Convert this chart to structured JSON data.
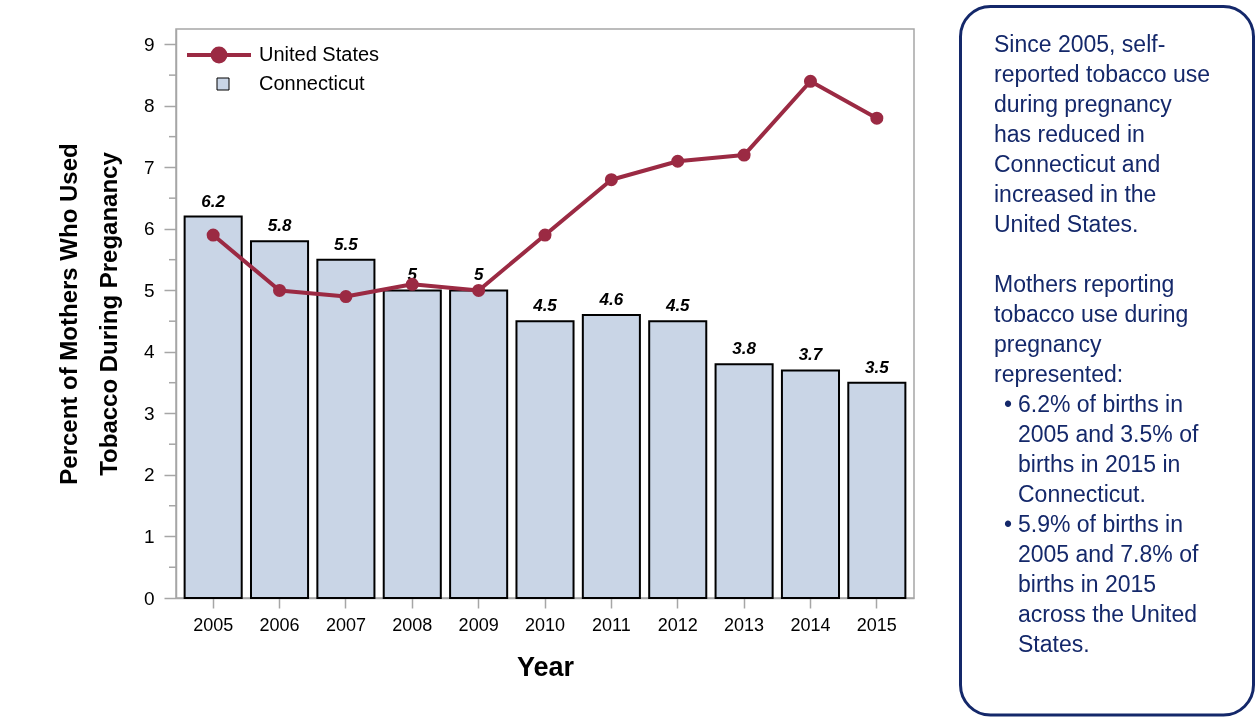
{
  "chart_data": {
    "type": "bar",
    "xlabel": "Year",
    "ylabel": "Percent of Mothers Who Used Tobacco During Preganancy",
    "categories": [
      "2005",
      "2006",
      "2007",
      "2008",
      "2009",
      "2010",
      "2011",
      "2012",
      "2013",
      "2014",
      "2015"
    ],
    "series": [
      {
        "name": "United States",
        "type": "line",
        "color": "#9b2a43",
        "marker": "circle",
        "values": [
          5.9,
          5.0,
          4.9,
          5.1,
          5.0,
          5.9,
          6.8,
          7.1,
          7.2,
          8.4,
          7.8
        ]
      },
      {
        "name": "Connecticut",
        "type": "bar",
        "color": "#c9d5e6",
        "values": [
          6.2,
          5.8,
          5.5,
          5,
          5,
          4.5,
          4.6,
          4.5,
          3.8,
          3.7,
          3.5
        ],
        "value_labels": [
          "6.2",
          "5.8",
          "5.5",
          "5",
          "5",
          "4.5",
          "4.6",
          "4.5",
          "3.8",
          "3.7",
          "3.5"
        ]
      }
    ],
    "ylim": [
      0,
      9.25
    ],
    "yticks": [
      0,
      {
        "value": 0.5,
        "label": null
      },
      1,
      {
        "value": 1.5,
        "label": null
      },
      2,
      {
        "value": 2.5,
        "label": null
      },
      3,
      {
        "value": 3.5,
        "label": null
      },
      4,
      {
        "value": 4.5,
        "label": null
      },
      5,
      {
        "value": 5.5,
        "label": null
      },
      6,
      {
        "value": 6.5,
        "label": null
      },
      7,
      {
        "value": 7.5,
        "label": null
      },
      8,
      {
        "value": 8.5,
        "label": null
      },
      9
    ],
    "legend": "top left",
    "annotations": [
      "Since 2005, self-reported tobacco use during pregnancy has reduced in Connecticut and increased in the United States.",
      "Mothers reporting tobacco use during pregnancy represented:",
      "• 6.2% of births in 2005 and 3.5% of births in 2015 in Connecticut.",
      "• 5.9% of births in 2005 and 7.8% of births in 2015 across the United States."
    ]
  }
}
